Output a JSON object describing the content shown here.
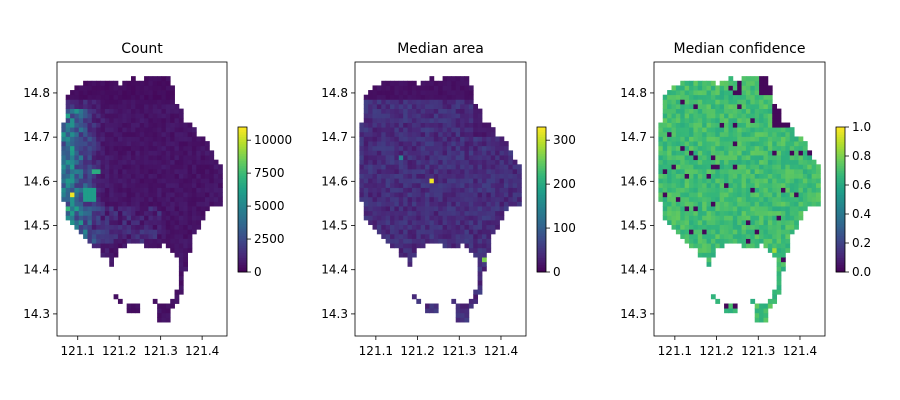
{
  "chart_data": [
    {
      "type": "heatmap",
      "title": "Count",
      "xlabel": "",
      "ylabel": "",
      "x_ticks": [
        121.1,
        121.2,
        121.3,
        121.4
      ],
      "y_ticks": [
        14.3,
        14.4,
        14.5,
        14.6,
        14.7,
        14.8
      ],
      "xlim": [
        121.05,
        121.46
      ],
      "ylim": [
        14.25,
        14.87
      ],
      "colormap": "viridis",
      "colorbar": {
        "range": [
          0,
          11000
        ],
        "ticks": [
          0,
          2500,
          5000,
          7500,
          10000
        ]
      },
      "values_summary": {
        "background": 500,
        "hotspot_max": 11000
      }
    },
    {
      "type": "heatmap",
      "title": "Median area",
      "xlabel": "",
      "ylabel": "",
      "x_ticks": [
        121.1,
        121.2,
        121.3,
        121.4
      ],
      "y_ticks": [
        14.3,
        14.4,
        14.5,
        14.6,
        14.7,
        14.8
      ],
      "xlim": [
        121.05,
        121.46
      ],
      "ylim": [
        14.25,
        14.87
      ],
      "colormap": "viridis",
      "colorbar": {
        "range": [
          0,
          330
        ],
        "ticks": [
          0,
          100,
          200,
          300
        ]
      },
      "values_summary": {
        "background": 40,
        "hotspot_max": 330
      }
    },
    {
      "type": "heatmap",
      "title": "Median confidence",
      "xlabel": "",
      "ylabel": "",
      "x_ticks": [
        121.1,
        121.2,
        121.3,
        121.4
      ],
      "y_ticks": [
        14.3,
        14.4,
        14.5,
        14.6,
        14.7,
        14.8
      ],
      "xlim": [
        121.05,
        121.46
      ],
      "ylim": [
        14.25,
        14.87
      ],
      "colormap": "viridis",
      "colorbar": {
        "range": [
          0,
          1
        ],
        "ticks": [
          0.0,
          0.2,
          0.4,
          0.6,
          0.8,
          1.0
        ]
      },
      "values_summary": {
        "background": 0.7,
        "low": 0.0,
        "high": 0.85
      }
    }
  ],
  "colors": {
    "viridis": [
      "#440154",
      "#482878",
      "#3e4989",
      "#31688e",
      "#26828e",
      "#1f9e89",
      "#35b779",
      "#6ece58",
      "#b5de2b",
      "#fde725"
    ]
  }
}
